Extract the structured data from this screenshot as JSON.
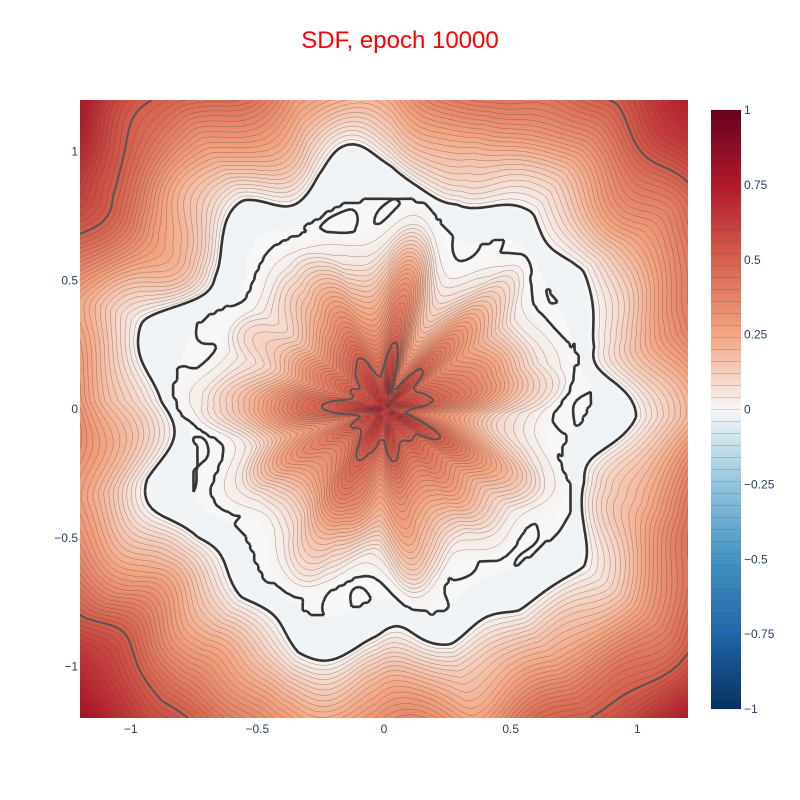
{
  "chart_data": {
    "type": "heatmap",
    "subtype": "contour",
    "title": "SDF, epoch 10000",
    "title_color": "#ff0000",
    "xlabel": "",
    "ylabel": "",
    "xlim": [
      -1.2,
      1.2
    ],
    "ylim": [
      -1.2,
      1.2
    ],
    "x_ticks": [
      -1,
      -0.5,
      0,
      0.5,
      1
    ],
    "x_tick_labels": [
      "−1",
      "−0.5",
      "0",
      "0.5",
      "1"
    ],
    "y_ticks": [
      1,
      0.5,
      0,
      -0.5,
      -1
    ],
    "y_tick_labels": [
      "1",
      "0.5",
      "0",
      "−0.5",
      "−1"
    ],
    "colorbar": {
      "range": [
        -1,
        1
      ],
      "ticks": [
        1,
        0.75,
        0.5,
        0.25,
        0,
        -0.25,
        -0.5,
        -0.75,
        -1
      ],
      "tick_labels": [
        "1",
        "0.75",
        "0.5",
        "0.25",
        "0",
        "−0.25",
        "−0.5",
        "−0.75",
        "−1"
      ],
      "colorscale": "RdBu_r",
      "color_stops": [
        [
          0.0,
          "#053061"
        ],
        [
          0.125,
          "#2166ac"
        ],
        [
          0.25,
          "#4393c3"
        ],
        [
          0.375,
          "#92c5de"
        ],
        [
          0.5,
          "#f7f7f7"
        ],
        [
          0.625,
          "#f4a582"
        ],
        [
          0.75,
          "#d6604d"
        ],
        [
          0.875,
          "#b2182b"
        ],
        [
          1.0,
          "#67001f"
        ]
      ]
    },
    "field": {
      "ring_center_radius": 0.8,
      "ring_half_width": 0.12,
      "inner_peak_value": 0.38,
      "corner_value": 0.78,
      "contour_step": 0.02,
      "emphasis_levels": [
        0,
        0.25,
        0.5
      ]
    },
    "colors": {
      "zero_contour": "#333333",
      "major_contour": "#555555",
      "minor_contour": "#444444",
      "axis_text": "#2a3f5f",
      "background": "#ffffff"
    }
  }
}
